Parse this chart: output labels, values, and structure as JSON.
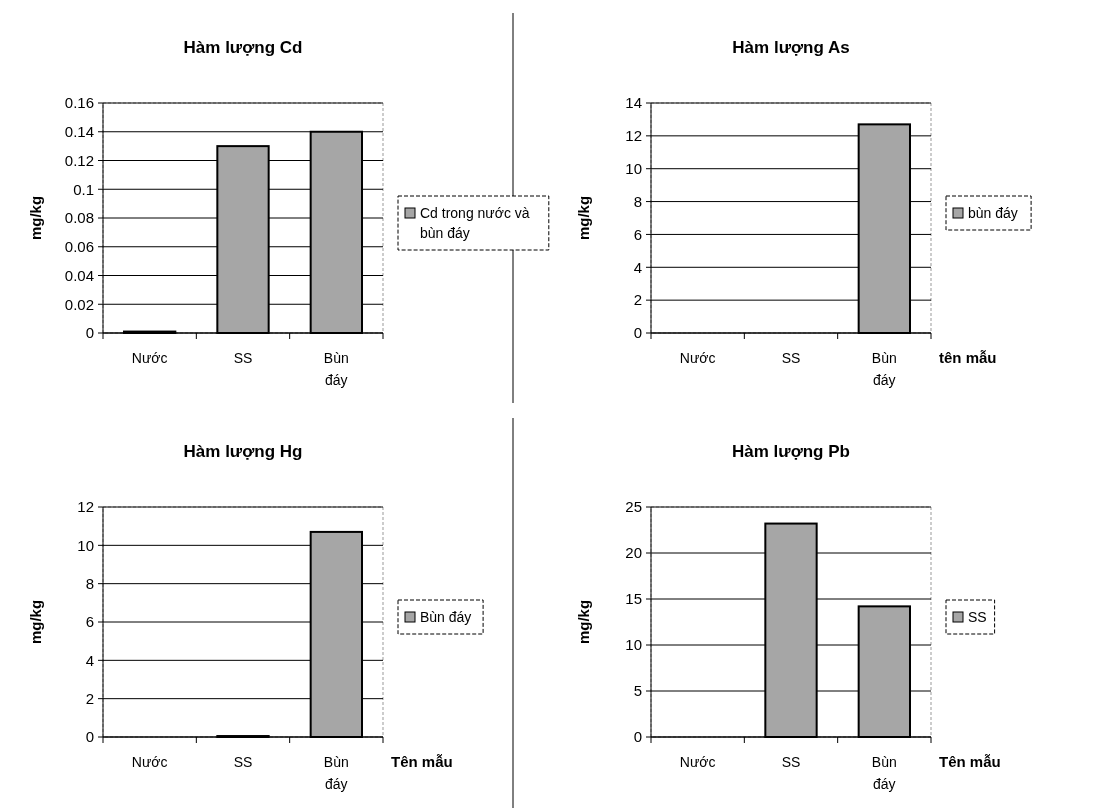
{
  "chart_data": [
    {
      "type": "bar",
      "title": "Hàm lượng Cd",
      "ylabel": "mg/kg",
      "categories": [
        "Nước",
        "SS",
        "Bùn đáy"
      ],
      "series": [
        {
          "name": "Cd trong nước và bùn đáy",
          "color": "#a6a6a6",
          "values": [
            0.001,
            0.13,
            0.14
          ]
        }
      ],
      "ylim": [
        0,
        0.16
      ],
      "yticks": [
        0,
        0.02,
        0.04,
        0.06,
        0.08,
        0.1,
        0.12,
        0.14,
        0.16
      ],
      "grid": "y",
      "legend": "right"
    },
    {
      "type": "bar",
      "title": "Hàm lượng As",
      "ylabel": "mg/kg",
      "xlabel": "tên mẫu",
      "categories": [
        "Nước",
        "SS",
        "Bùn đáy"
      ],
      "series": [
        {
          "name": "bùn đáy",
          "color": "#a6a6a6",
          "values": [
            0,
            0,
            12.7
          ]
        }
      ],
      "ylim": [
        0,
        14
      ],
      "yticks": [
        0,
        2,
        4,
        6,
        8,
        10,
        12,
        14
      ],
      "grid": "y",
      "legend": "right"
    },
    {
      "type": "bar",
      "title": "Hàm lượng Hg",
      "ylabel": "mg/kg",
      "xlabel": "Tên mẫu",
      "categories": [
        "Nước",
        "SS",
        "Bùn đáy"
      ],
      "series": [
        {
          "name": "Bùn đáy",
          "color": "#a6a6a6",
          "values": [
            0,
            0.05,
            10.7
          ]
        }
      ],
      "ylim": [
        0,
        12
      ],
      "yticks": [
        0,
        2,
        4,
        6,
        8,
        10,
        12
      ],
      "grid": "y",
      "legend": "right"
    },
    {
      "type": "bar",
      "title": "Hàm lượng Pb",
      "ylabel": "mg/kg",
      "xlabel": "Tên mẫu",
      "categories": [
        "Nước",
        "SS",
        "Bùn đáy"
      ],
      "series": [
        {
          "name": "SS",
          "color": "#a6a6a6",
          "values": [
            0,
            23.2,
            14.2
          ]
        }
      ],
      "ylim": [
        0,
        25
      ],
      "yticks": [
        0,
        5,
        10,
        15,
        20,
        25
      ],
      "grid": "y",
      "legend": "right"
    }
  ]
}
